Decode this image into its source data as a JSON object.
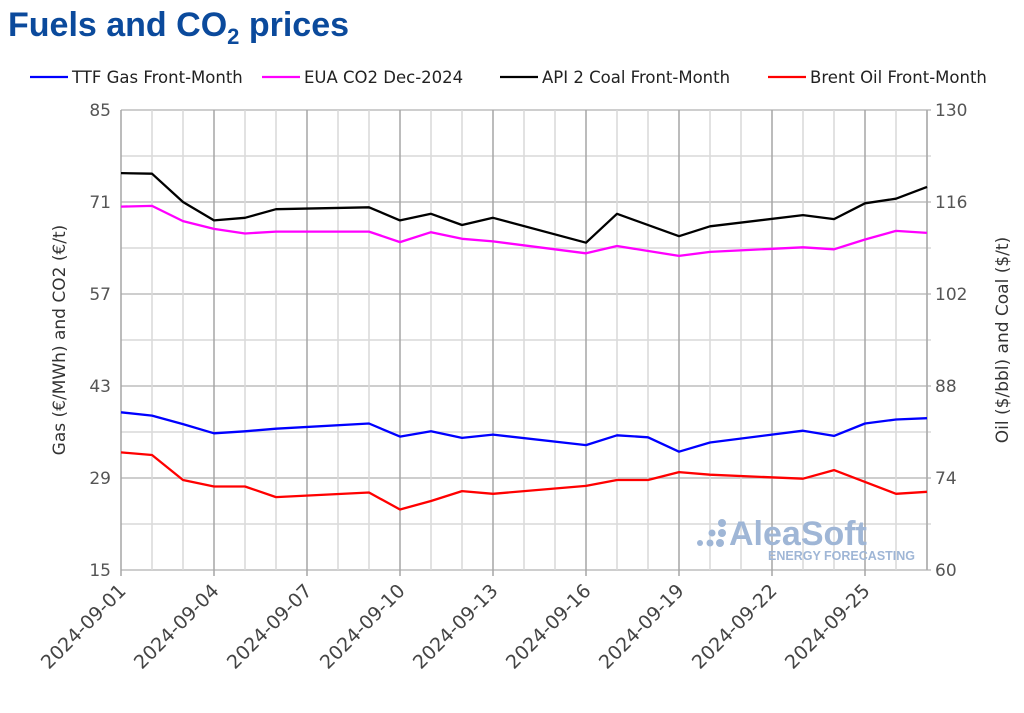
{
  "title": {
    "main": "Fuels and CO",
    "sub": "2",
    "rest": " prices"
  },
  "chart_data": {
    "type": "line",
    "x": [
      "2024-09-01",
      "2024-09-02",
      "2024-09-03",
      "2024-09-04",
      "2024-09-05",
      "2024-09-06",
      "2024-09-07",
      "2024-09-08",
      "2024-09-09",
      "2024-09-10",
      "2024-09-11",
      "2024-09-12",
      "2024-09-13",
      "2024-09-14",
      "2024-09-15",
      "2024-09-16",
      "2024-09-17",
      "2024-09-18",
      "2024-09-19",
      "2024-09-20",
      "2024-09-21",
      "2024-09-22",
      "2024-09-23",
      "2024-09-24",
      "2024-09-25",
      "2024-09-26",
      "2024-09-27"
    ],
    "x_tick_labels": [
      "2024-09-01",
      "2024-09-04",
      "2024-09-07",
      "2024-09-10",
      "2024-09-13",
      "2024-09-16",
      "2024-09-19",
      "2024-09-22",
      "2024-09-25"
    ],
    "ylabel_left": "Gas (€/MWh) and CO2 (€/t)",
    "ylabel_right": "Oil ($/bbl) and Coal ($/t)",
    "ylim_left": [
      15,
      85
    ],
    "ylim_right": [
      60,
      130
    ],
    "yticks_left": [
      15,
      29,
      43,
      57,
      71,
      85
    ],
    "yticks_right": [
      60,
      74,
      88,
      102,
      116,
      130
    ],
    "grid": true,
    "legend_position": "top",
    "series": [
      {
        "name": "TTF Gas Front-Month",
        "axis": "left",
        "color": "#0000ff",
        "values": [
          39.0,
          38.5,
          37.2,
          35.8,
          36.1,
          36.5,
          null,
          null,
          37.3,
          35.3,
          36.1,
          35.1,
          35.6,
          null,
          null,
          34.0,
          35.5,
          35.2,
          33.0,
          34.4,
          null,
          null,
          36.2,
          35.4,
          37.3,
          37.9,
          38.1
        ]
      },
      {
        "name": "EUA CO2 Dec-2024",
        "axis": "left",
        "color": "#ff00ff",
        "values": [
          70.3,
          70.4,
          68.1,
          66.9,
          66.2,
          66.5,
          null,
          null,
          66.5,
          64.9,
          66.4,
          65.4,
          65.0,
          null,
          null,
          63.2,
          64.3,
          null,
          62.8,
          63.4,
          null,
          null,
          64.1,
          63.8,
          65.3,
          66.6,
          66.3
        ]
      },
      {
        "name": "API 2 Coal Front-Month",
        "axis": "right",
        "color": "#000000",
        "values": [
          120.4,
          120.3,
          116.0,
          113.2,
          113.6,
          114.9,
          null,
          null,
          115.2,
          113.2,
          114.2,
          112.5,
          113.6,
          null,
          null,
          109.8,
          114.2,
          null,
          110.8,
          112.3,
          null,
          null,
          114.0,
          113.4,
          115.8,
          116.5,
          118.3
        ]
      },
      {
        "name": "Brent Oil Front-Month",
        "axis": "right",
        "color": "#ff0000",
        "values": [
          77.9,
          77.5,
          73.7,
          72.7,
          72.7,
          71.1,
          null,
          null,
          71.8,
          69.2,
          70.5,
          72.0,
          71.6,
          null,
          null,
          72.8,
          73.7,
          73.7,
          74.9,
          74.5,
          null,
          null,
          73.9,
          75.2,
          73.4,
          71.6,
          71.9
        ]
      }
    ]
  },
  "watermark": {
    "brand": "AleaSoft",
    "tagline": "ENERGY FORECASTING",
    "color": "#9fb6d6"
  }
}
